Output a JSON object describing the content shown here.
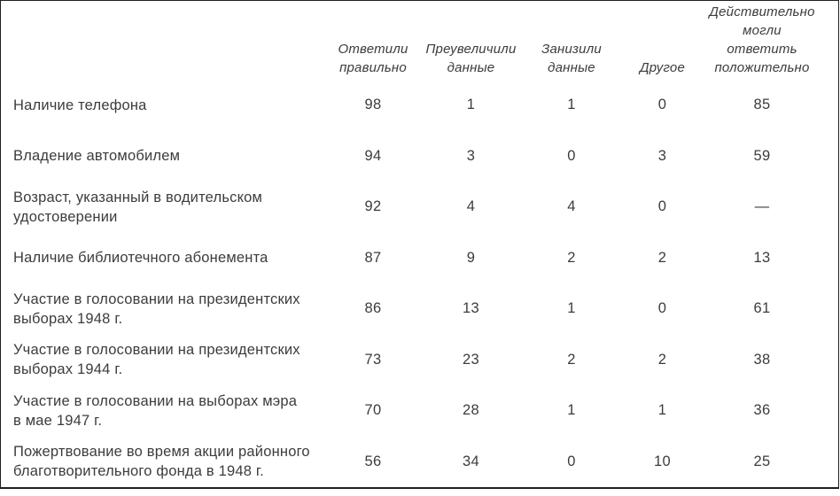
{
  "colors": {
    "background": "#ffffff",
    "text": "#3c3c3c",
    "border": "#1f1f1f"
  },
  "table": {
    "columns": [
      "Ответили\nправильно",
      "Преувеличили\nданные",
      "Занизили\nданные",
      "Другое",
      "Действительно\nмогли ответить\nположительно"
    ],
    "rows": [
      {
        "label": "Наличие телефона",
        "values": [
          "98",
          "1",
          "1",
          "0",
          "85"
        ]
      },
      {
        "label": "Владение автомобилем",
        "values": [
          "94",
          "3",
          "0",
          "3",
          "59"
        ]
      },
      {
        "label": "Возраст, указанный в водительском\nудостоверении",
        "values": [
          "92",
          "4",
          "4",
          "0",
          "—"
        ]
      },
      {
        "label": "Наличие библиотечного абонемента",
        "values": [
          "87",
          "9",
          "2",
          "2",
          "13"
        ]
      },
      {
        "label": "Участие в голосовании на президентских\nвыборах 1948 г.",
        "values": [
          "86",
          "13",
          "1",
          "0",
          "61"
        ]
      },
      {
        "label": "Участие в голосовании на президентских\nвыборах 1944 г.",
        "values": [
          "73",
          "23",
          "2",
          "2",
          "38"
        ]
      },
      {
        "label": "Участие в голосовании на выборах мэра\nв мае 1947 г.",
        "values": [
          "70",
          "28",
          "1",
          "1",
          "36"
        ]
      },
      {
        "label": "Пожертвование во время акции районного\nблаготворительного фонда в 1948 г.",
        "values": [
          "56",
          "34",
          "0",
          "10",
          "25"
        ]
      }
    ]
  },
  "chart_data": {
    "type": "table",
    "columns": [
      "Ответили правильно",
      "Преувеличили данные",
      "Занизили данные",
      "Другое",
      "Действительно могли ответить положительно"
    ],
    "row_labels": [
      "Наличие телефона",
      "Владение автомобилем",
      "Возраст, указанный в водительском удостоверении",
      "Наличие библиотечного абонемента",
      "Участие в голосовании на президентских выборах 1948 г.",
      "Участие в голосовании на президентских выборах 1944 г.",
      "Участие в голосовании на выборах мэра в мае 1947 г.",
      "Пожертвование во время акции районного благотворительного фонда в 1948 г."
    ],
    "values": [
      [
        98,
        1,
        1,
        0,
        85
      ],
      [
        94,
        3,
        0,
        3,
        59
      ],
      [
        92,
        4,
        4,
        0,
        null
      ],
      [
        87,
        9,
        2,
        2,
        13
      ],
      [
        86,
        13,
        1,
        0,
        61
      ],
      [
        73,
        23,
        2,
        2,
        38
      ],
      [
        70,
        28,
        1,
        1,
        36
      ],
      [
        56,
        34,
        0,
        10,
        25
      ]
    ]
  }
}
